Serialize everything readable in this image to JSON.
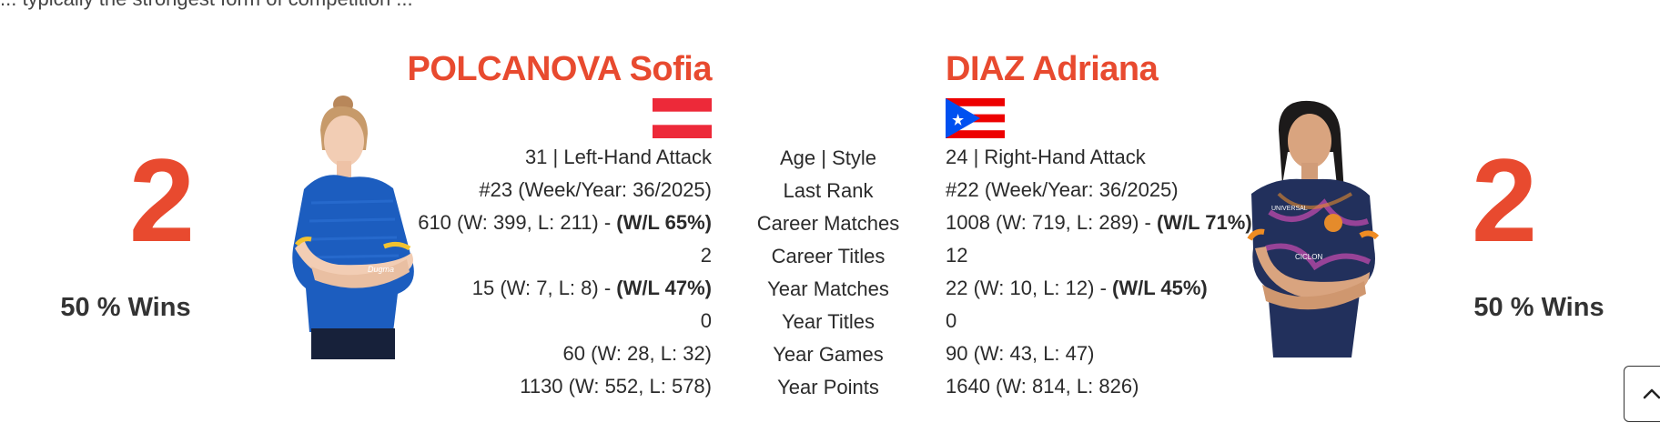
{
  "top_text": "... typically the strongest form of competition ...",
  "left_player": {
    "score": "2",
    "wins_pct": "50 % Wins",
    "name": "POLCANOVA Sofia",
    "flag": "austria",
    "age_style": "31 | Left-Hand Attack",
    "last_rank": "#23 (Week/Year: 36/2025)",
    "career_matches": "610 (W: 399, L: 211) - ",
    "career_matches_wl": "(W/L 65%)",
    "career_titles": "2",
    "year_matches": "15 (W: 7, L: 8) - ",
    "year_matches_wl": "(W/L 47%)",
    "year_titles": "0",
    "year_games": "60 (W: 28, L: 32)",
    "year_points": "1130 (W: 552, L: 578)"
  },
  "labels": {
    "age_style": "Age | Style",
    "last_rank": "Last Rank",
    "career_matches": "Career Matches",
    "career_titles": "Career Titles",
    "year_matches": "Year Matches",
    "year_titles": "Year Titles",
    "year_games": "Year Games",
    "year_points": "Year Points"
  },
  "right_player": {
    "score": "2",
    "wins_pct": "50 % Wins",
    "name": "DIAZ Adriana",
    "flag": "puerto-rico",
    "age_style": "24 | Right-Hand Attack",
    "last_rank": "#22 (Week/Year: 36/2025)",
    "career_matches": "1008 (W: 719, L: 289) - ",
    "career_matches_wl": "(W/L 71%)",
    "career_titles": "12",
    "year_matches": "22 (W: 10, L: 12) - ",
    "year_matches_wl": "(W/L 45%)",
    "year_titles": "0",
    "year_games": "90 (W: 43, L: 47)",
    "year_points": "1640 (W: 814, L: 826)"
  },
  "colors": {
    "accent": "#e84a2f",
    "text": "#2b2b2b"
  },
  "icons": {
    "scroll_top": "chevron-up-icon"
  }
}
